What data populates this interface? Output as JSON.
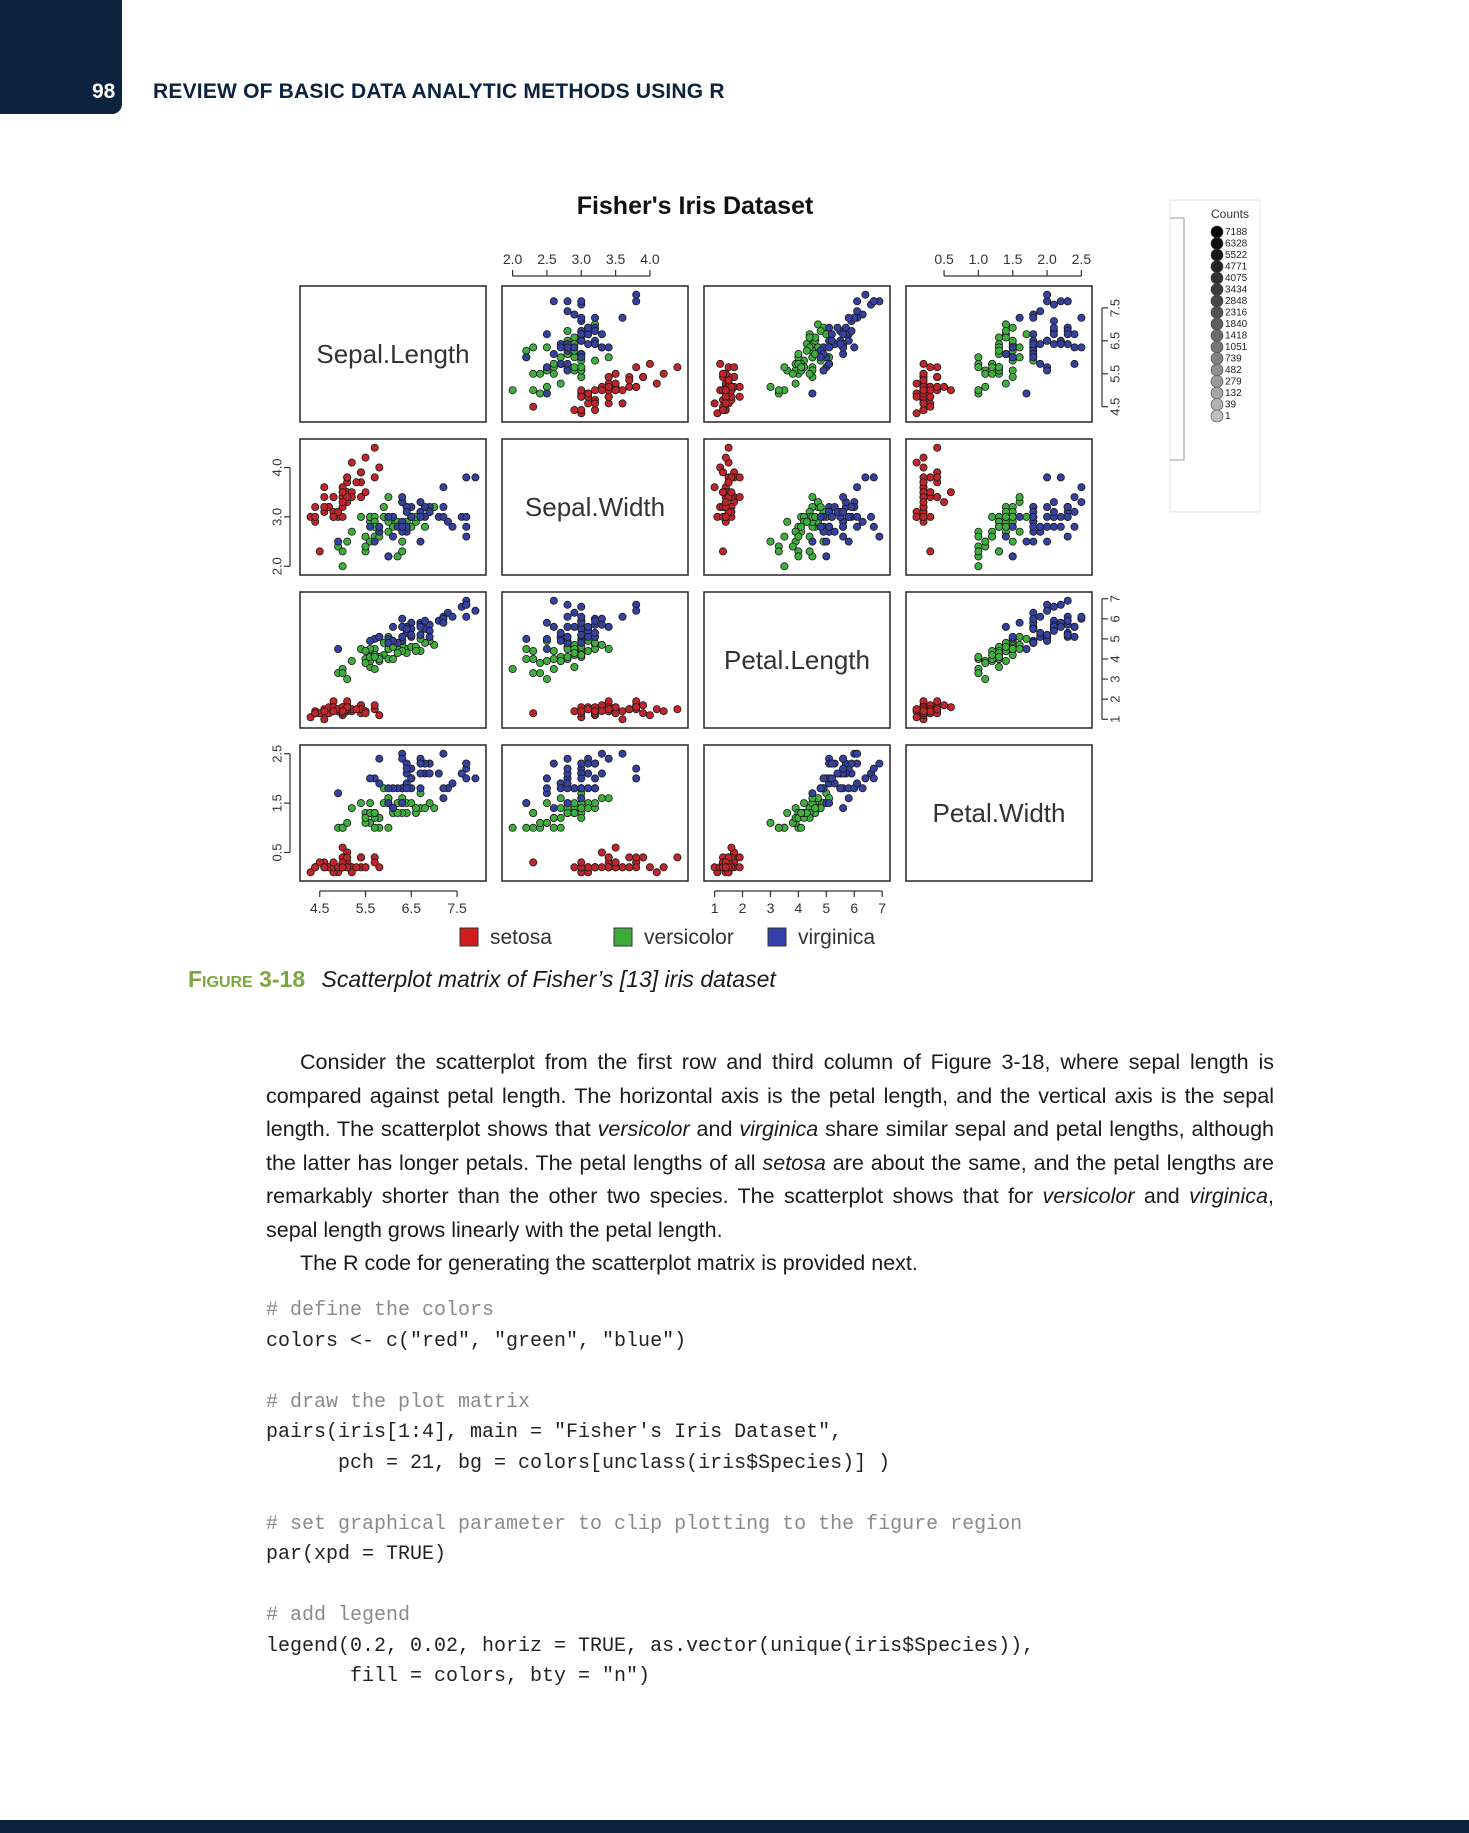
{
  "header": {
    "page_number": "98",
    "title": "REVIEW OF BASIC DATA ANALYTIC METHODS USING R"
  },
  "figure": {
    "title": "Fisher's Iris Dataset",
    "counts_legend": {
      "title": "Counts",
      "values": [
        "7188",
        "6328",
        "5522",
        "4771",
        "4075",
        "3434",
        "2848",
        "2316",
        "1840",
        "1418",
        "1051",
        "739",
        "482",
        "279",
        "132",
        "39",
        "1"
      ]
    }
  },
  "chart_data": {
    "type": "scatter",
    "title": "Fisher's Iris Dataset",
    "variables": [
      "Sepal.Length",
      "Sepal.Width",
      "Petal.Length",
      "Petal.Width"
    ],
    "ranges": {
      "Sepal.Length": [
        4.3,
        7.9
      ],
      "Sepal.Width": [
        2.0,
        4.4
      ],
      "Petal.Length": [
        1.0,
        6.9
      ],
      "Petal.Width": [
        0.1,
        2.5
      ]
    },
    "ticks": {
      "Sepal.Length": [
        "4.5",
        "5.5",
        "6.5",
        "7.5"
      ],
      "Sepal.Width": [
        "2.0",
        "2.5",
        "3.0",
        "3.5",
        "4.0"
      ],
      "Petal.Length": [
        "1",
        "2",
        "3",
        "4",
        "5",
        "6",
        "7"
      ],
      "Petal.Width": [
        "0.5",
        "1.0",
        "1.5",
        "2.0",
        "2.5"
      ]
    },
    "left_tick_labels": {
      "Sepal.Width": [
        "2.0",
        "3.0",
        "4.0"
      ],
      "Petal.Width": [
        "0.5",
        "1.5",
        "2.5"
      ]
    },
    "right_tick_labels": {
      "Sepal.Length": [
        "4.5",
        "5.5",
        "6.5",
        "7.5"
      ],
      "Petal.Length": [
        "1",
        "2",
        "3",
        "4",
        "5",
        "6",
        "7"
      ]
    },
    "legend": [
      {
        "name": "setosa",
        "color": "#d01c1c"
      },
      {
        "name": "versicolor",
        "color": "#3cab3c"
      },
      {
        "name": "virginica",
        "color": "#3340a8"
      }
    ],
    "series": [
      {
        "name": "setosa",
        "color": "#c0252b",
        "points": [
          [
            5.1,
            3.5,
            1.4,
            0.2
          ],
          [
            4.9,
            3.0,
            1.4,
            0.2
          ],
          [
            4.7,
            3.2,
            1.3,
            0.2
          ],
          [
            4.6,
            3.1,
            1.5,
            0.2
          ],
          [
            5.0,
            3.6,
            1.4,
            0.2
          ],
          [
            5.4,
            3.9,
            1.7,
            0.4
          ],
          [
            4.6,
            3.4,
            1.4,
            0.3
          ],
          [
            5.0,
            3.4,
            1.5,
            0.2
          ],
          [
            4.4,
            2.9,
            1.4,
            0.2
          ],
          [
            4.9,
            3.1,
            1.5,
            0.1
          ],
          [
            5.4,
            3.7,
            1.5,
            0.2
          ],
          [
            4.8,
            3.4,
            1.6,
            0.2
          ],
          [
            4.8,
            3.0,
            1.4,
            0.1
          ],
          [
            4.3,
            3.0,
            1.1,
            0.1
          ],
          [
            5.8,
            4.0,
            1.2,
            0.2
          ],
          [
            5.7,
            4.4,
            1.5,
            0.4
          ],
          [
            5.4,
            3.9,
            1.3,
            0.4
          ],
          [
            5.1,
            3.5,
            1.4,
            0.3
          ],
          [
            5.7,
            3.8,
            1.7,
            0.3
          ],
          [
            5.1,
            3.8,
            1.5,
            0.3
          ],
          [
            5.4,
            3.4,
            1.7,
            0.2
          ],
          [
            5.1,
            3.7,
            1.5,
            0.4
          ],
          [
            4.6,
            3.6,
            1.0,
            0.2
          ],
          [
            5.1,
            3.3,
            1.7,
            0.5
          ],
          [
            4.8,
            3.4,
            1.9,
            0.2
          ],
          [
            5.0,
            3.0,
            1.6,
            0.2
          ],
          [
            5.0,
            3.4,
            1.6,
            0.4
          ],
          [
            5.2,
            3.5,
            1.5,
            0.2
          ],
          [
            5.2,
            3.4,
            1.4,
            0.2
          ],
          [
            4.7,
            3.2,
            1.6,
            0.2
          ],
          [
            4.8,
            3.1,
            1.6,
            0.2
          ],
          [
            5.4,
            3.4,
            1.5,
            0.4
          ],
          [
            5.2,
            4.1,
            1.5,
            0.1
          ],
          [
            5.5,
            4.2,
            1.4,
            0.2
          ],
          [
            4.9,
            3.1,
            1.5,
            0.2
          ],
          [
            5.0,
            3.2,
            1.2,
            0.2
          ],
          [
            5.5,
            3.5,
            1.3,
            0.2
          ],
          [
            4.4,
            3.0,
            1.3,
            0.2
          ],
          [
            5.1,
            3.4,
            1.5,
            0.2
          ],
          [
            5.0,
            3.5,
            1.3,
            0.3
          ],
          [
            4.5,
            2.3,
            1.3,
            0.3
          ],
          [
            4.4,
            3.2,
            1.3,
            0.2
          ],
          [
            5.0,
            3.5,
            1.6,
            0.6
          ],
          [
            5.1,
            3.8,
            1.9,
            0.4
          ],
          [
            4.8,
            3.0,
            1.4,
            0.3
          ],
          [
            5.1,
            3.8,
            1.6,
            0.2
          ],
          [
            4.6,
            3.2,
            1.4,
            0.2
          ],
          [
            5.3,
            3.7,
            1.5,
            0.2
          ],
          [
            5.0,
            3.3,
            1.4,
            0.2
          ]
        ]
      },
      {
        "name": "versicolor",
        "color": "#3fae3f",
        "points": [
          [
            7.0,
            3.2,
            4.7,
            1.4
          ],
          [
            6.4,
            3.2,
            4.5,
            1.5
          ],
          [
            6.9,
            3.1,
            4.9,
            1.5
          ],
          [
            5.5,
            2.3,
            4.0,
            1.3
          ],
          [
            6.5,
            2.8,
            4.6,
            1.5
          ],
          [
            5.7,
            2.8,
            4.5,
            1.3
          ],
          [
            6.3,
            3.3,
            4.7,
            1.6
          ],
          [
            4.9,
            2.4,
            3.3,
            1.0
          ],
          [
            6.6,
            2.9,
            4.6,
            1.3
          ],
          [
            5.2,
            2.7,
            3.9,
            1.4
          ],
          [
            5.0,
            2.0,
            3.5,
            1.0
          ],
          [
            5.9,
            3.0,
            4.2,
            1.5
          ],
          [
            6.0,
            2.2,
            4.0,
            1.0
          ],
          [
            6.1,
            2.9,
            4.7,
            1.4
          ],
          [
            5.6,
            2.9,
            3.6,
            1.3
          ],
          [
            6.7,
            3.1,
            4.4,
            1.4
          ],
          [
            5.6,
            3.0,
            4.5,
            1.5
          ],
          [
            5.8,
            2.7,
            4.1,
            1.0
          ],
          [
            6.2,
            2.2,
            4.5,
            1.5
          ],
          [
            5.6,
            2.5,
            3.9,
            1.1
          ],
          [
            5.9,
            3.2,
            4.8,
            1.8
          ],
          [
            6.1,
            2.8,
            4.0,
            1.3
          ],
          [
            6.3,
            2.5,
            4.9,
            1.5
          ],
          [
            6.4,
            2.9,
            4.3,
            1.3
          ],
          [
            6.6,
            3.0,
            4.4,
            1.4
          ],
          [
            6.8,
            2.8,
            4.8,
            1.4
          ],
          [
            6.7,
            3.0,
            5.0,
            1.7
          ],
          [
            6.0,
            2.9,
            4.5,
            1.5
          ],
          [
            5.7,
            2.6,
            3.5,
            1.0
          ],
          [
            5.5,
            2.4,
            3.8,
            1.1
          ],
          [
            5.8,
            2.7,
            3.9,
            1.2
          ],
          [
            6.0,
            2.7,
            5.1,
            1.6
          ],
          [
            5.4,
            3.0,
            4.5,
            1.5
          ],
          [
            6.0,
            3.4,
            4.5,
            1.6
          ],
          [
            6.3,
            2.3,
            4.4,
            1.3
          ],
          [
            5.6,
            3.0,
            4.1,
            1.3
          ],
          [
            5.5,
            2.6,
            4.4,
            1.2
          ],
          [
            6.1,
            3.0,
            4.6,
            1.4
          ],
          [
            5.8,
            2.6,
            4.0,
            1.2
          ],
          [
            5.0,
            2.3,
            3.3,
            1.0
          ],
          [
            5.7,
            3.0,
            4.2,
            1.2
          ],
          [
            5.7,
            2.9,
            4.2,
            1.3
          ],
          [
            6.2,
            2.9,
            4.3,
            1.3
          ],
          [
            5.1,
            2.5,
            3.0,
            1.1
          ],
          [
            5.7,
            2.8,
            4.1,
            1.3
          ]
        ]
      },
      {
        "name": "virginica",
        "color": "#34419e",
        "points": [
          [
            6.3,
            3.3,
            6.0,
            2.5
          ],
          [
            5.8,
            2.7,
            5.1,
            1.9
          ],
          [
            7.1,
            3.0,
            5.9,
            2.1
          ],
          [
            6.3,
            2.9,
            5.6,
            1.8
          ],
          [
            6.5,
            3.0,
            5.8,
            2.2
          ],
          [
            7.6,
            3.0,
            6.6,
            2.1
          ],
          [
            4.9,
            2.5,
            4.5,
            1.7
          ],
          [
            7.3,
            2.9,
            6.3,
            1.8
          ],
          [
            6.7,
            2.5,
            5.8,
            1.8
          ],
          [
            7.2,
            3.6,
            6.1,
            2.5
          ],
          [
            6.5,
            3.2,
            5.1,
            2.0
          ],
          [
            6.4,
            2.7,
            5.3,
            1.9
          ],
          [
            6.8,
            3.0,
            5.5,
            2.1
          ],
          [
            5.7,
            2.5,
            5.0,
            2.0
          ],
          [
            5.8,
            2.8,
            5.1,
            2.4
          ],
          [
            6.4,
            3.2,
            5.3,
            2.3
          ],
          [
            6.5,
            3.0,
            5.5,
            1.8
          ],
          [
            7.7,
            3.8,
            6.7,
            2.2
          ],
          [
            7.7,
            2.6,
            6.9,
            2.3
          ],
          [
            6.0,
            2.2,
            5.0,
            1.5
          ],
          [
            6.9,
            3.2,
            5.7,
            2.3
          ],
          [
            5.6,
            2.8,
            4.9,
            2.0
          ],
          [
            7.7,
            2.8,
            6.7,
            2.0
          ],
          [
            6.3,
            2.7,
            4.9,
            1.8
          ],
          [
            6.7,
            3.3,
            5.7,
            2.1
          ],
          [
            7.2,
            3.2,
            6.0,
            1.8
          ],
          [
            6.2,
            2.8,
            4.8,
            1.8
          ],
          [
            6.1,
            3.0,
            4.9,
            1.8
          ],
          [
            6.4,
            2.8,
            5.6,
            2.1
          ],
          [
            7.2,
            3.0,
            5.8,
            1.6
          ],
          [
            7.4,
            2.8,
            6.1,
            1.9
          ],
          [
            7.9,
            3.8,
            6.4,
            2.0
          ],
          [
            6.4,
            2.8,
            5.6,
            2.2
          ],
          [
            6.3,
            2.8,
            5.1,
            1.5
          ],
          [
            6.1,
            2.6,
            5.6,
            1.4
          ],
          [
            7.7,
            3.0,
            6.1,
            2.3
          ],
          [
            6.3,
            3.4,
            5.6,
            2.4
          ],
          [
            6.4,
            3.1,
            5.5,
            1.8
          ],
          [
            6.0,
            3.0,
            4.8,
            1.8
          ],
          [
            6.9,
            3.1,
            5.4,
            2.1
          ],
          [
            6.7,
            3.1,
            5.6,
            2.4
          ],
          [
            6.9,
            3.1,
            5.1,
            2.3
          ],
          [
            6.8,
            3.2,
            5.9,
            2.3
          ],
          [
            6.7,
            3.0,
            5.2,
            2.3
          ],
          [
            6.5,
            3.0,
            5.2,
            2.0
          ]
        ]
      }
    ]
  },
  "caption": {
    "label": "Figure 3-18",
    "text": "Scatterplot matrix of Fisher’s [13] iris dataset"
  },
  "paragraph1": {
    "p1": "Consider the scatterplot from the first row and third column of Figure 3-18, where sepal length is compared against petal length. The horizontal axis is the petal length, and the vertical axis is the sepal length. The scatterplot shows that ",
    "em1": "versicolor",
    "p2": " and ",
    "em2": "virginica",
    "p3": " share similar sepal and petal lengths, although the latter has longer petals. The petal lengths of all ",
    "em3": "setosa",
    "p4": " are about the same, and the petal lengths are remarkably shorter than the other two species. The scatterplot shows that for ",
    "em4": "versicolor",
    "p5": " and ",
    "em5": "virginica",
    "p6": ", sepal length grows linearly with the petal length."
  },
  "paragraph2": "The R code for generating the scatterplot matrix is provided next.",
  "code_lines": [
    {
      "text": "# define the colors",
      "comment": true
    },
    {
      "text": "colors <- c(\"red\", \"green\", \"blue\")",
      "comment": false
    },
    {
      "text": "",
      "comment": false
    },
    {
      "text": "# draw the plot matrix",
      "comment": true
    },
    {
      "text": "pairs(iris[1:4], main = \"Fisher's Iris Dataset\",",
      "comment": false
    },
    {
      "text": "      pch = 21, bg = colors[unclass(iris$Species)] )",
      "comment": false
    },
    {
      "text": "",
      "comment": false
    },
    {
      "text": "# set graphical parameter to clip plotting to the figure region",
      "comment": true
    },
    {
      "text": "par(xpd = TRUE)",
      "comment": false
    },
    {
      "text": "",
      "comment": false
    },
    {
      "text": "# add legend",
      "comment": true
    },
    {
      "text": "legend(0.2, 0.02, horiz = TRUE, as.vector(unique(iris$Species)),",
      "comment": false
    },
    {
      "text": "       fill = colors, bty = \"n\")",
      "comment": false
    }
  ]
}
